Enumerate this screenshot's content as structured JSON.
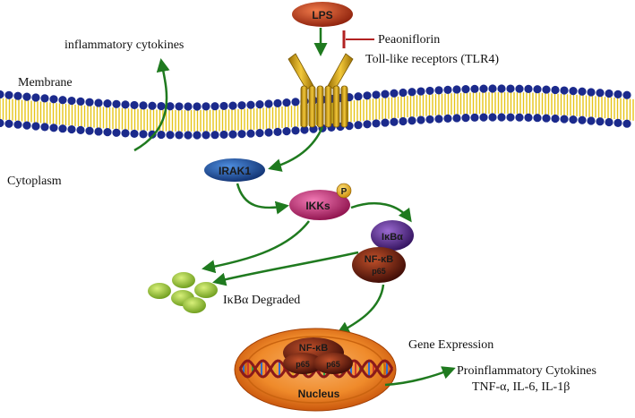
{
  "labels": {
    "lps": "LPS",
    "peaoniflorin": "Peaoniflorin",
    "tlr4": "Toll-like receptors (TLR4)",
    "inflammatory_cytokines": "inflammatory cytokines",
    "membrane": "Membrane",
    "cytoplasm": "Cytoplasm",
    "irak1": "IRAK1",
    "ikks": "IKKs",
    "phospho": "P",
    "ikba": "IκBα",
    "nfkb": "NF-κB",
    "p65": "p65",
    "ikba_degraded": "IκBα Degraded",
    "nucleus_nfkb": "NF-κB",
    "nucleus_p65_left": "p65",
    "nucleus_p65_right": "p65",
    "nucleus": "Nucleus",
    "gene_expression": "Gene Expression",
    "proinflammatory": "Proinflammatory Cytokines",
    "cytokine_list": "TNF-α, IL-6, IL-1β"
  },
  "colors": {
    "arrow": "#1f7a1f",
    "inhibitor": "#b22222",
    "lps": "#c23a1a",
    "receptor": "#d9a514",
    "membrane_head": "#1b2a8c",
    "membrane_tail": "#e6c417",
    "irak1": "#1a56a8",
    "ikks": "#d0247a",
    "ikba": "#5a2a8a",
    "nfkb": "#7a1a10",
    "degraded": "#9acd32",
    "nucleus": "#e36b12"
  }
}
